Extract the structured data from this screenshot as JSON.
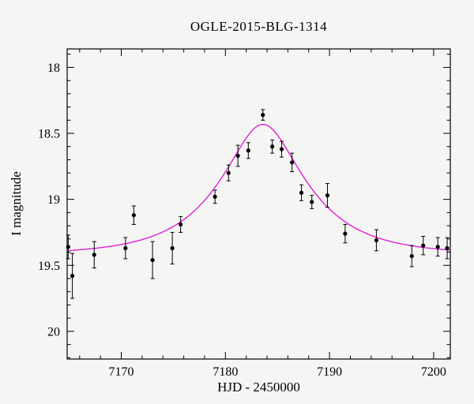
{
  "chart_data": {
    "type": "scatter",
    "title": "OGLE-2015-BLG-1314",
    "xlabel": "HJD - 2450000",
    "ylabel": "I magnitude",
    "xlim": [
      7164.8,
      7201.6
    ],
    "ylim": [
      17.86,
      20.21
    ],
    "y_axis_inverted": true,
    "grid": false,
    "point_color": "#000000",
    "model_color": "#e020d8",
    "x_ticks": [
      {
        "v": 7170,
        "l": "7170"
      },
      {
        "v": 7180,
        "l": "7180"
      },
      {
        "v": 7190,
        "l": "7190"
      },
      {
        "v": 7200,
        "l": "7200"
      }
    ],
    "y_ticks": [
      {
        "v": 18.0,
        "l": "18"
      },
      {
        "v": 18.5,
        "l": "18.5"
      },
      {
        "v": 19.0,
        "l": "19"
      },
      {
        "v": 19.5,
        "l": "19.5"
      },
      {
        "v": 20.0,
        "l": "20"
      }
    ],
    "x_minor_step": 2,
    "y_minor_step": 0.1,
    "points": [
      {
        "x": 7164.9,
        "y": 19.36,
        "err": 0.09
      },
      {
        "x": 7165.3,
        "y": 19.58,
        "err": 0.17
      },
      {
        "x": 7167.4,
        "y": 19.42,
        "err": 0.1
      },
      {
        "x": 7170.4,
        "y": 19.37,
        "err": 0.08
      },
      {
        "x": 7171.2,
        "y": 19.12,
        "err": 0.07
      },
      {
        "x": 7173.0,
        "y": 19.46,
        "err": 0.14
      },
      {
        "x": 7174.9,
        "y": 19.37,
        "err": 0.12
      },
      {
        "x": 7175.7,
        "y": 19.19,
        "err": 0.06
      },
      {
        "x": 7179.0,
        "y": 18.98,
        "err": 0.05
      },
      {
        "x": 7180.3,
        "y": 18.8,
        "err": 0.06
      },
      {
        "x": 7181.2,
        "y": 18.67,
        "err": 0.08
      },
      {
        "x": 7182.2,
        "y": 18.63,
        "err": 0.06
      },
      {
        "x": 7183.6,
        "y": 18.36,
        "err": 0.04
      },
      {
        "x": 7184.5,
        "y": 18.6,
        "err": 0.05
      },
      {
        "x": 7185.4,
        "y": 18.62,
        "err": 0.06
      },
      {
        "x": 7186.4,
        "y": 18.72,
        "err": 0.07
      },
      {
        "x": 7187.3,
        "y": 18.95,
        "err": 0.06
      },
      {
        "x": 7188.3,
        "y": 19.02,
        "err": 0.05
      },
      {
        "x": 7189.8,
        "y": 18.97,
        "err": 0.09
      },
      {
        "x": 7191.5,
        "y": 19.26,
        "err": 0.07
      },
      {
        "x": 7194.5,
        "y": 19.31,
        "err": 0.08
      },
      {
        "x": 7197.9,
        "y": 19.43,
        "err": 0.08
      },
      {
        "x": 7199.0,
        "y": 19.35,
        "err": 0.07
      },
      {
        "x": 7200.4,
        "y": 19.36,
        "err": 0.07
      },
      {
        "x": 7201.3,
        "y": 19.37,
        "err": 0.08
      }
    ],
    "model": {
      "form": "paczynski",
      "t0": 7183.6,
      "tE": 7.5,
      "u0": 0.43,
      "baseline_mag": 19.42,
      "peak_mag": 18.43
    }
  }
}
